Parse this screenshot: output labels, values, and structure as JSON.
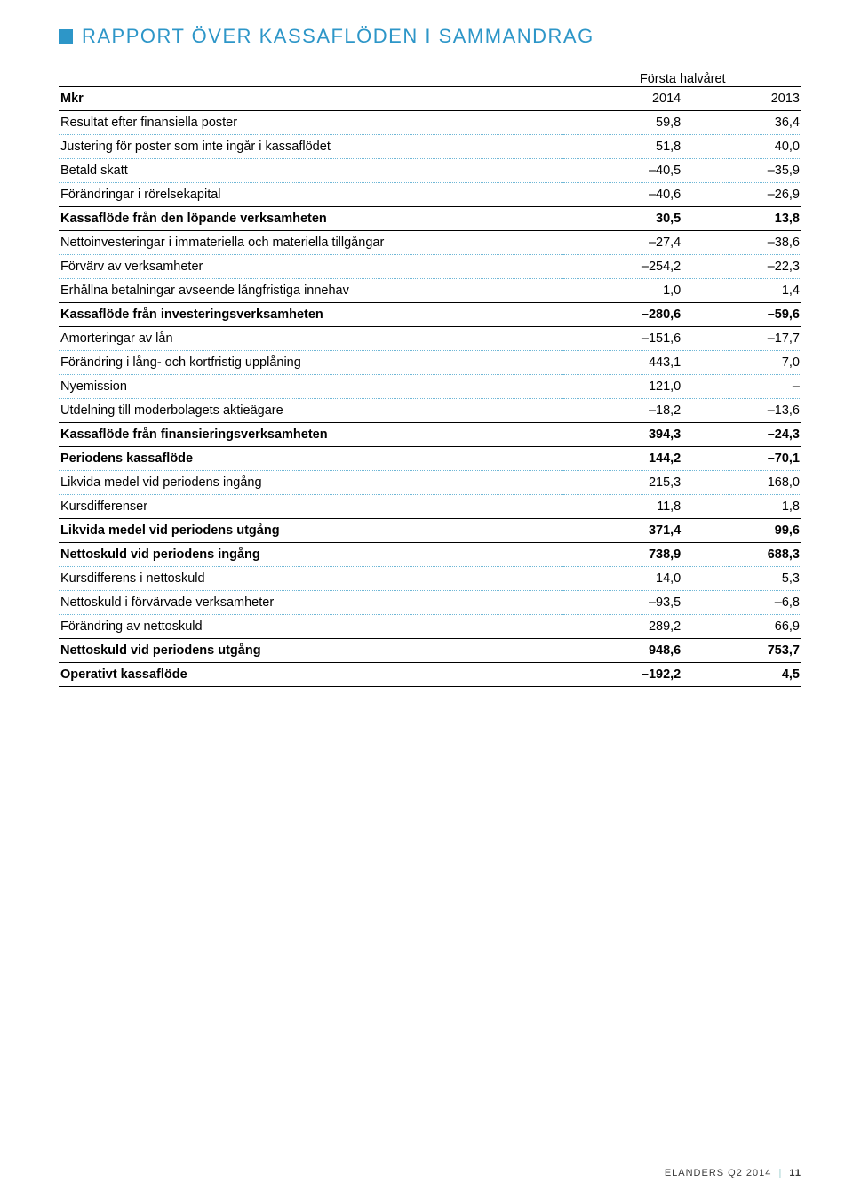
{
  "colors": {
    "square": "#2d96c8",
    "title": "#2d96c8",
    "dotted_border": "#6fb7d6",
    "solid_border": "#000000",
    "text": "#000000",
    "background": "#ffffff",
    "footer": "#3a3a3a"
  },
  "title": "RAPPORT ÖVER KASSAFLÖDEN I SAMMANDRAG",
  "table": {
    "superheader": "Första halvåret",
    "row_unit_label": "Mkr",
    "col_headers": [
      "2014",
      "2013"
    ],
    "rows": [
      {
        "label": "Resultat efter finansiella poster",
        "vals": [
          "59,8",
          "36,4"
        ],
        "style": "dotted"
      },
      {
        "label": "Justering för poster som inte ingår i kassaflödet",
        "vals": [
          "51,8",
          "40,0"
        ],
        "style": "dotted"
      },
      {
        "label": "Betald skatt",
        "vals": [
          "–40,5",
          "–35,9"
        ],
        "style": "dotted"
      },
      {
        "label": "Förändringar i rörelsekapital",
        "vals": [
          "–40,6",
          "–26,9"
        ],
        "style": "solid"
      },
      {
        "label": "Kassaflöde från den löpande verksamheten",
        "vals": [
          "30,5",
          "13,8"
        ],
        "style": "solid",
        "bold": true
      },
      {
        "label": "Nettoinvesteringar i immateriella och materiella tillgångar",
        "vals": [
          "–27,4",
          "–38,6"
        ],
        "style": "dotted"
      },
      {
        "label": "Förvärv av verksamheter",
        "vals": [
          "–254,2",
          "–22,3"
        ],
        "style": "dotted"
      },
      {
        "label": "Erhållna betalningar avseende långfristiga innehav",
        "vals": [
          "1,0",
          "1,4"
        ],
        "style": "solid"
      },
      {
        "label": "Kassaflöde från investeringsverksamheten",
        "vals": [
          "–280,6",
          "–59,6"
        ],
        "style": "solid",
        "bold": true
      },
      {
        "label": "Amorteringar av lån",
        "vals": [
          "–151,6",
          "–17,7"
        ],
        "style": "dotted"
      },
      {
        "label": "Förändring i lång- och kortfristig upplåning",
        "vals": [
          "443,1",
          "7,0"
        ],
        "style": "dotted"
      },
      {
        "label": "Nyemission",
        "vals": [
          "121,0",
          "–"
        ],
        "style": "dotted"
      },
      {
        "label": "Utdelning till moderbolagets aktieägare",
        "vals": [
          "–18,2",
          "–13,6"
        ],
        "style": "solid"
      },
      {
        "label": "Kassaflöde från finansieringsverksamheten",
        "vals": [
          "394,3",
          "–24,3"
        ],
        "style": "solid",
        "bold": true
      },
      {
        "label": "Periodens kassaflöde",
        "vals": [
          "144,2",
          "–70,1"
        ],
        "style": "dotted",
        "bold": true
      },
      {
        "label": "Likvida medel vid periodens ingång",
        "vals": [
          "215,3",
          "168,0"
        ],
        "style": "dotted"
      },
      {
        "label": "Kursdifferenser",
        "vals": [
          "11,8",
          "1,8"
        ],
        "style": "solid"
      },
      {
        "label": "Likvida medel vid periodens utgång",
        "vals": [
          "371,4",
          "99,6"
        ],
        "style": "solid",
        "bold": true
      },
      {
        "label": "Nettoskuld vid periodens ingång",
        "vals": [
          "738,9",
          "688,3"
        ],
        "style": "dotted",
        "bold": true
      },
      {
        "label": "Kursdifferens i nettoskuld",
        "vals": [
          "14,0",
          "5,3"
        ],
        "style": "dotted"
      },
      {
        "label": "Nettoskuld i förvärvade verksamheter",
        "vals": [
          "–93,5",
          "–6,8"
        ],
        "style": "dotted"
      },
      {
        "label": "Förändring av nettoskuld",
        "vals": [
          "289,2",
          "66,9"
        ],
        "style": "solid"
      },
      {
        "label": "Nettoskuld vid periodens utgång",
        "vals": [
          "948,6",
          "753,7"
        ],
        "style": "solid",
        "bold": true
      },
      {
        "label": "Operativt kassaflöde",
        "vals": [
          "–192,2",
          "4,5"
        ],
        "style": "solid",
        "bold": true
      }
    ]
  },
  "footer": {
    "brand": "ELANDERS Q2 2014",
    "page": "11"
  }
}
